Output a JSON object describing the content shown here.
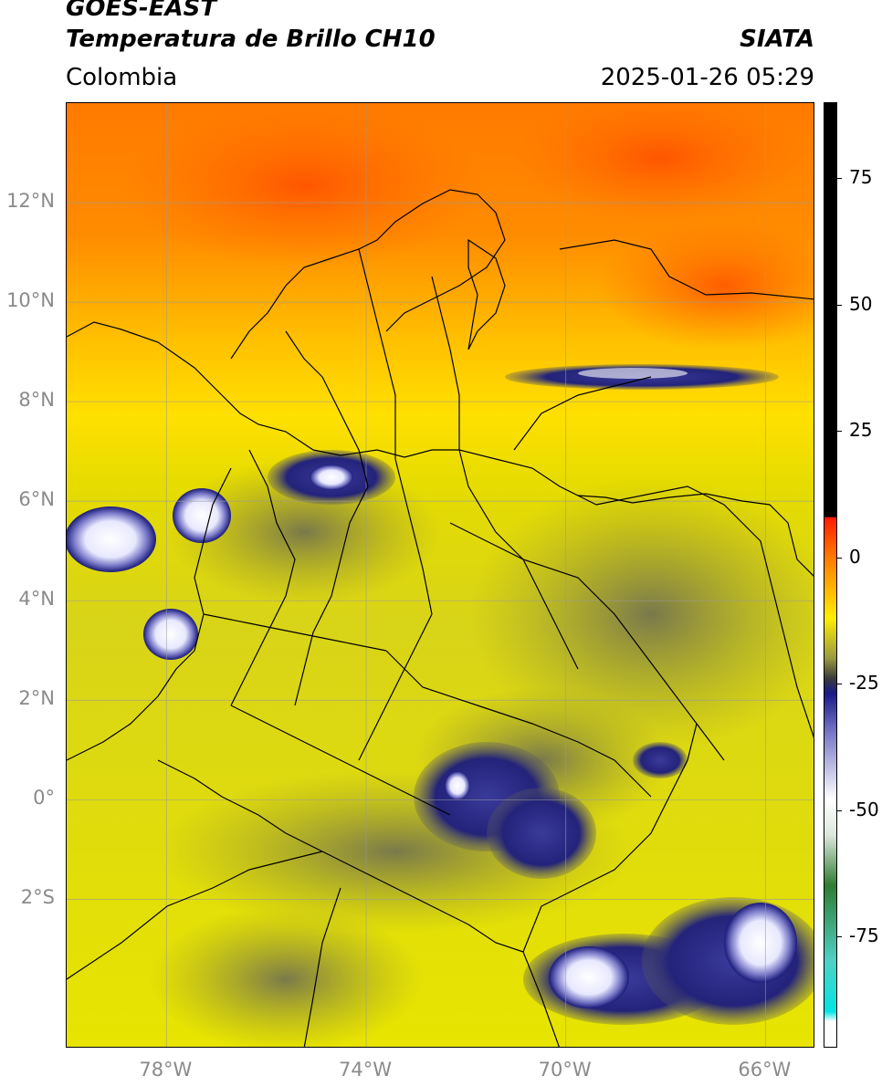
{
  "header": {
    "satellite": "GOES-EAST",
    "product": "Temperatura de Brillo CH10",
    "region": "Colombia",
    "agency": "SIATA",
    "datetime": "2025-01-26 05:29"
  },
  "map": {
    "lon_range": [
      -80,
      -65
    ],
    "lat_range": [
      -5,
      14
    ],
    "lat_ticks": [
      {
        "value": 12,
        "label": "12°N"
      },
      {
        "value": 10,
        "label": "10°N"
      },
      {
        "value": 8,
        "label": "8°N"
      },
      {
        "value": 6,
        "label": "6°N"
      },
      {
        "value": 4,
        "label": "4°N"
      },
      {
        "value": 2,
        "label": "2°N"
      },
      {
        "value": 0,
        "label": "0°"
      },
      {
        "value": -2,
        "label": "2°S"
      }
    ],
    "lon_ticks": [
      {
        "value": -78,
        "label": "78°W"
      },
      {
        "value": -74,
        "label": "74°W"
      },
      {
        "value": -70,
        "label": "70°W"
      },
      {
        "value": -66,
        "label": "66°W"
      }
    ],
    "colors": {
      "warm": "#ff6a00",
      "mid": "#ffd800",
      "cool": "#c8c81a",
      "grey": "#7a7a50",
      "blue": "#1a237e",
      "white": "#f4f4ff",
      "green": "#3c8a3c"
    }
  },
  "colorbar": {
    "range": [
      -97,
      90
    ],
    "ticks": [
      {
        "value": 75,
        "label": "75"
      },
      {
        "value": 50,
        "label": "50"
      },
      {
        "value": 25,
        "label": "25"
      },
      {
        "value": 0,
        "label": "0"
      },
      {
        "value": -25,
        "label": "-25"
      },
      {
        "value": -50,
        "label": "-50"
      },
      {
        "value": -75,
        "label": "-75"
      }
    ],
    "stops": [
      {
        "value": 90,
        "color": "#000000"
      },
      {
        "value": 8,
        "color": "#000000"
      },
      {
        "value": 7.9,
        "color": "#ff1a00"
      },
      {
        "value": 0,
        "color": "#ff7a00"
      },
      {
        "value": -12,
        "color": "#ffee00"
      },
      {
        "value": -20,
        "color": "#9a9a40"
      },
      {
        "value": -24,
        "color": "#3a3a3a"
      },
      {
        "value": -27,
        "color": "#1a1a8a"
      },
      {
        "value": -35,
        "color": "#7a7ac8"
      },
      {
        "value": -48,
        "color": "#ffffff"
      },
      {
        "value": -55,
        "color": "#dde8dd"
      },
      {
        "value": -65,
        "color": "#2e7d32"
      },
      {
        "value": -80,
        "color": "#4fd1c5"
      },
      {
        "value": -90,
        "color": "#00e5e5"
      },
      {
        "value": -92,
        "color": "#ffffff"
      },
      {
        "value": -97,
        "color": "#ffffff"
      }
    ]
  }
}
